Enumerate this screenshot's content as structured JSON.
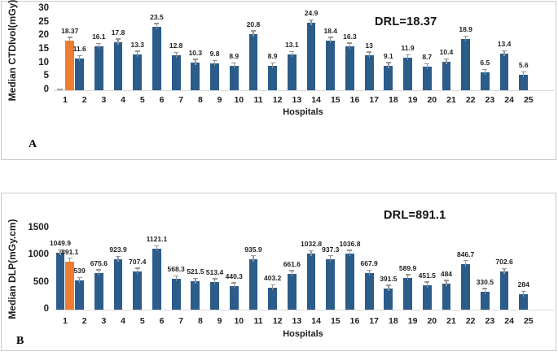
{
  "colors": {
    "bar_blue": "#2B5C8A",
    "bar_orange": "#ED7D31",
    "error_bar_gray": "#969696",
    "axis_line_gray": "#d9d9d9",
    "text_dark": "#1f1f1f"
  },
  "panels": [
    {
      "letter": "A"
    },
    {
      "letter": "B"
    }
  ],
  "chart_data": [
    {
      "id": "A",
      "type": "bar",
      "title": "",
      "xlabel": "Hospitals",
      "ylabel": "Median CTDIvol(mGy)",
      "ylim": [
        0,
        30
      ],
      "yticks": [
        0,
        5,
        10,
        15,
        20,
        25,
        30
      ],
      "grid": false,
      "annotation": "DRL=18.37",
      "categories": [
        "1",
        "2",
        "3",
        "4",
        "5",
        "6",
        "7",
        "8",
        "9",
        "10",
        "11",
        "12",
        "13",
        "14",
        "15",
        "16",
        "17",
        "18",
        "19",
        "20",
        "21",
        "22",
        "23",
        "24",
        "25"
      ],
      "series": [
        {
          "name": "Median CTDIvol per hospital",
          "color": "#2B5C8A",
          "values": [
            0,
            11.6,
            16.1,
            17.8,
            13.3,
            23.5,
            12.8,
            10.3,
            9.8,
            8.9,
            20.8,
            8.9,
            13.1,
            24.9,
            18.4,
            16.3,
            13,
            9.1,
            11.9,
            8.7,
            10.4,
            18.9,
            6.5,
            13.4,
            5.6
          ],
          "labels": [
            "",
            "11.6",
            "16.1",
            "17.8",
            "13.3",
            "23.5",
            "12.8",
            "10.3",
            "9.8",
            "8.9",
            "20.8",
            "8.9",
            "13.1",
            "24.9",
            "18.4",
            "16.3",
            "13",
            "9.1",
            "11.9",
            "8.7",
            "10.4",
            "18.9",
            "6.5",
            "13.4",
            "5.6"
          ]
        },
        {
          "name": "DRL",
          "color": "#ED7D31",
          "values": [
            18.37,
            null,
            null,
            null,
            null,
            null,
            null,
            null,
            null,
            null,
            null,
            null,
            null,
            null,
            null,
            null,
            null,
            null,
            null,
            null,
            null,
            null,
            null,
            null,
            null
          ],
          "labels": [
            "18.37",
            "",
            "",
            "",
            "",
            "",
            "",
            "",
            "",
            "",
            "",
            "",
            "",
            "",
            "",
            "",
            "",
            "",
            "",
            "",
            "",
            "",
            "",
            "",
            ""
          ]
        }
      ]
    },
    {
      "id": "B",
      "type": "bar",
      "title": "",
      "xlabel": "Hospitals",
      "ylabel": "Median DLP(mGy.cm)",
      "ylim": [
        0,
        1500
      ],
      "yticks": [
        0,
        500,
        1000,
        1500
      ],
      "grid": false,
      "annotation": "DRL=891.1",
      "categories": [
        "1",
        "2",
        "3",
        "4",
        "5",
        "6",
        "7",
        "8",
        "9",
        "10",
        "11",
        "12",
        "13",
        "14",
        "15",
        "16",
        "17",
        "18",
        "19",
        "20",
        "21",
        "22",
        "23",
        "24",
        "25"
      ],
      "series": [
        {
          "name": "Median DLP per hospital",
          "color": "#2B5C8A",
          "values": [
            1049.9,
            539,
            675.6,
            923.9,
            707.4,
            1121.1,
            568.3,
            521.5,
            513.4,
            440.3,
            935.9,
            403.2,
            661.6,
            1032.8,
            937.3,
            1036.8,
            667.9,
            391.5,
            589.9,
            451.5,
            484,
            846.7,
            330.5,
            702.6,
            284
          ],
          "labels": [
            "1049.9",
            "539",
            "675.6",
            "923.9",
            "707.4",
            "1121.1",
            "568.3",
            "521.5",
            "513.4",
            "440.3",
            "935.9",
            "403.2",
            "661.6",
            "1032.8",
            "937.3",
            "1036.8",
            "667.9",
            "391.5",
            "589.9",
            "451.5",
            "484",
            "846.7",
            "330.5",
            "702.6",
            "284"
          ]
        },
        {
          "name": "DRL",
          "color": "#ED7D31",
          "values": [
            891.1,
            null,
            null,
            null,
            null,
            null,
            null,
            null,
            null,
            null,
            null,
            null,
            null,
            null,
            null,
            null,
            null,
            null,
            null,
            null,
            null,
            null,
            null,
            null,
            null
          ],
          "labels": [
            "891.1",
            "",
            "",
            "",
            "",
            "",
            "",
            "",
            "",
            "",
            "",
            "",
            "",
            "",
            "",
            "",
            "",
            "",
            "",
            "",
            "",
            "",
            "",
            "",
            ""
          ]
        }
      ]
    }
  ]
}
